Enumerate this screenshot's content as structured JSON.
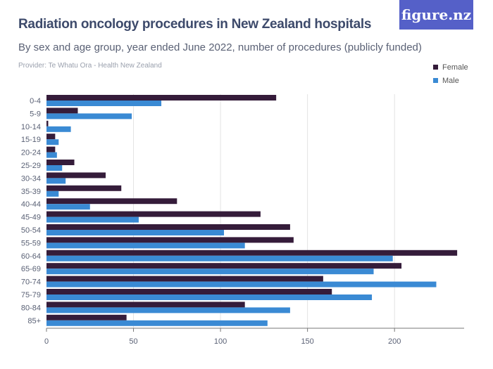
{
  "header": {
    "title": "Radiation oncology procedures in New Zealand hospitals",
    "subtitle": "By sex and age group, year ended June 2022, number of procedures (publicly funded)",
    "provider": "Provider: Te Whatu Ora - Health New Zealand",
    "logo": "figure.nz"
  },
  "chart_data": {
    "type": "bar",
    "orientation": "horizontal",
    "categories": [
      "0-4",
      "5-9",
      "10-14",
      "15-19",
      "20-24",
      "25-29",
      "30-34",
      "35-39",
      "40-44",
      "45-49",
      "50-54",
      "55-59",
      "60-64",
      "65-69",
      "70-74",
      "75-79",
      "80-84",
      "85+"
    ],
    "series": [
      {
        "name": "Female",
        "color": "#351c3a",
        "values": [
          132,
          18,
          1,
          5,
          5,
          16,
          34,
          43,
          75,
          123,
          140,
          142,
          236,
          204,
          159,
          164,
          114,
          46
        ]
      },
      {
        "name": "Male",
        "color": "#3a8ad4",
        "values": [
          66,
          49,
          14,
          7,
          6,
          9,
          11,
          7,
          25,
          53,
          102,
          114,
          199,
          188,
          224,
          187,
          140,
          127
        ]
      }
    ],
    "xlim": [
      0,
      240
    ],
    "xticks": [
      0,
      50,
      100,
      150,
      200
    ],
    "grid": true,
    "legend_position": "top-right"
  }
}
